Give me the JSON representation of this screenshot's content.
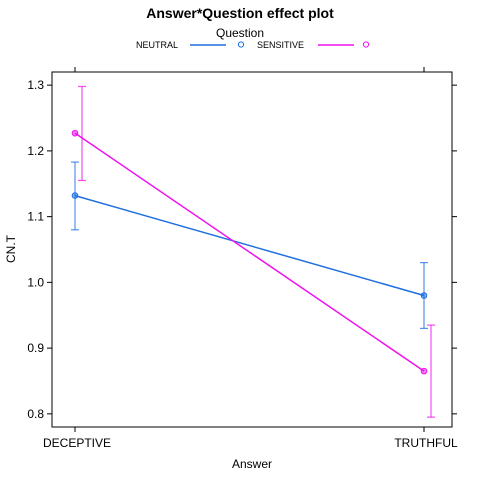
{
  "chart_data": {
    "type": "line",
    "title": "Answer*Question effect plot",
    "xlabel": "Answer",
    "ylabel": "CN.T",
    "categories": [
      "DECEPTIVE",
      "TRUTHFUL"
    ],
    "ylim": [
      0.78,
      1.32
    ],
    "yticks": [
      "0.8",
      "0.9",
      "1.0",
      "1.1",
      "1.2",
      "1.3"
    ],
    "grid": false,
    "legend": {
      "title": "Question",
      "placement": "top"
    },
    "series": [
      {
        "name": "NEUTRAL",
        "color": "#1f6fe0",
        "values": [
          1.132,
          0.98
        ],
        "lower": [
          1.08,
          0.93
        ],
        "upper": [
          1.183,
          1.03
        ]
      },
      {
        "name": "SENSITIVE",
        "color": "#ee12ee",
        "values": [
          1.227,
          0.865
        ],
        "lower": [
          1.155,
          0.795
        ],
        "upper": [
          1.298,
          0.935
        ]
      }
    ]
  }
}
